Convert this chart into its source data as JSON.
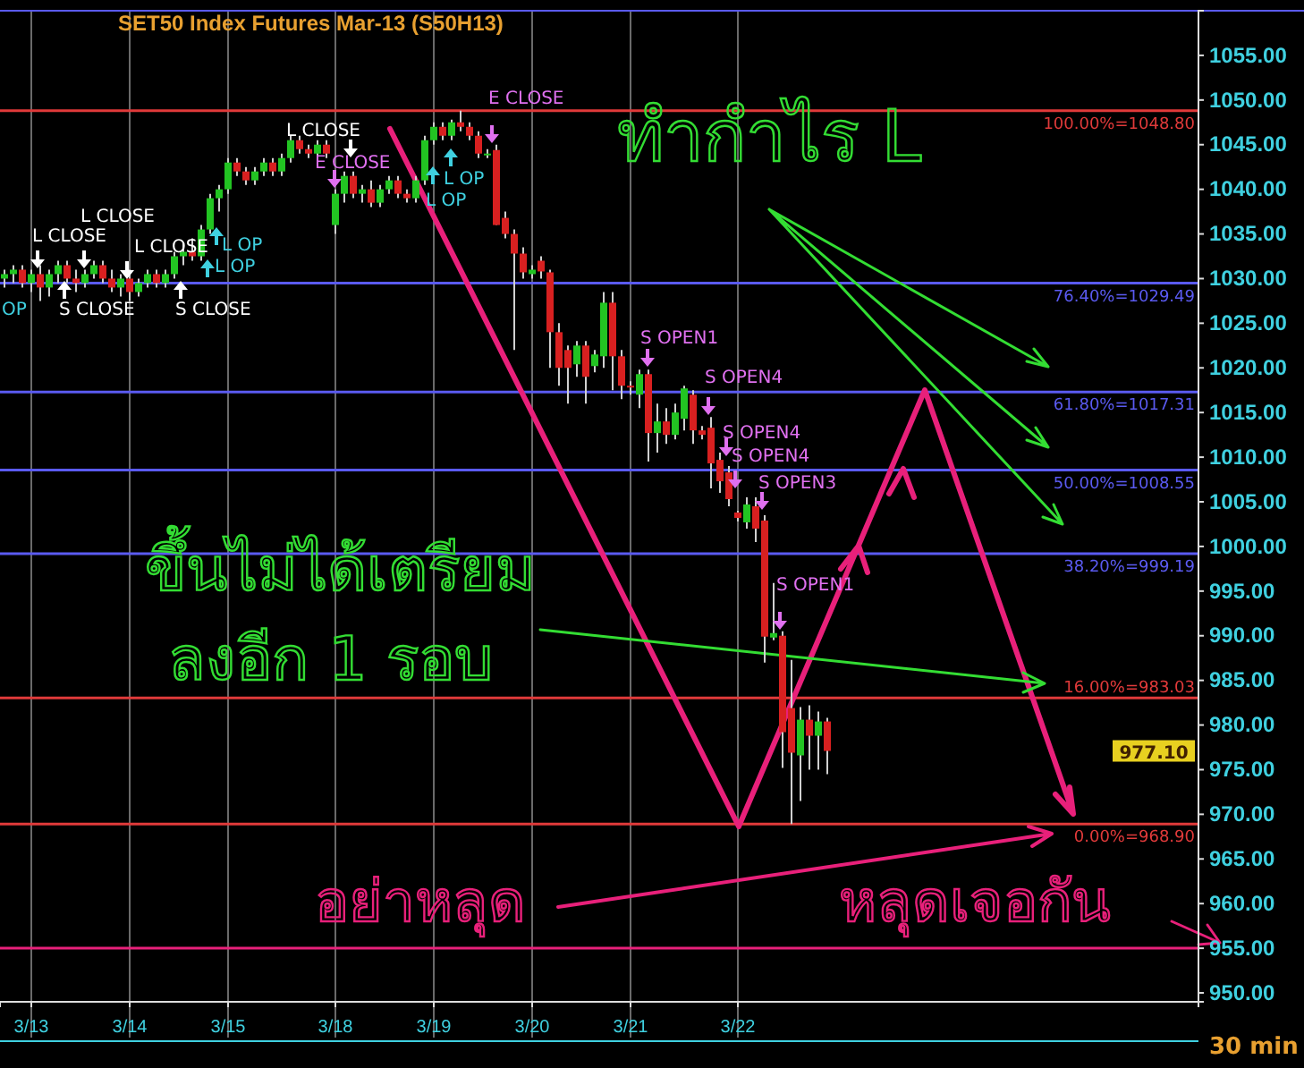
{
  "chart_data": {
    "type": "candlestick",
    "title": "SET50  Index  Futures  Mar-13  (S50H13)",
    "xlabel": "30  min",
    "categories": [
      null,
      null,
      null,
      "3/13",
      null,
      null,
      null,
      null,
      null,
      null,
      null,
      null,
      null,
      null,
      "3/14",
      null,
      null,
      null,
      null,
      null,
      null,
      null,
      null,
      null,
      null,
      "3/15",
      null,
      null,
      null,
      null,
      null,
      null,
      null,
      null,
      null,
      null,
      null,
      "3/18",
      null,
      null,
      null,
      null,
      null,
      null,
      null,
      null,
      null,
      null,
      "3/19",
      null,
      null,
      null,
      null,
      null,
      null,
      null,
      null,
      null,
      null,
      "3/20",
      null,
      null,
      null,
      null,
      null,
      null,
      null,
      null,
      null,
      null,
      "3/21",
      null,
      null,
      null,
      null,
      null,
      null,
      null,
      null,
      null,
      null,
      null,
      "3/22",
      null,
      null,
      null,
      null,
      null,
      null,
      null,
      null,
      null,
      null,
      null,
      null,
      null,
      null,
      null,
      null,
      null,
      null,
      null,
      null,
      null,
      null,
      null,
      null,
      null,
      null,
      null,
      null,
      null,
      null,
      null,
      null,
      null,
      null,
      null,
      null,
      null,
      null,
      null,
      null,
      null,
      null,
      null,
      null,
      null,
      null,
      null,
      null,
      null,
      null,
      null
    ],
    "ohlc": [
      [
        1030,
        1031,
        1029,
        1030.5
      ],
      [
        1030.5,
        1031.5,
        1029.5,
        1031
      ],
      [
        1031,
        1031.5,
        1029,
        1029.5
      ],
      [
        1029.5,
        1031,
        1028.5,
        1030.5
      ],
      [
        1030.5,
        1031.5,
        1027.5,
        1029
      ],
      [
        1029,
        1031,
        1028,
        1030.5
      ],
      [
        1030.5,
        1032,
        1029.5,
        1031.5
      ],
      [
        1031.5,
        1032,
        1029.5,
        1030
      ],
      [
        1030,
        1031,
        1028.5,
        1029.5
      ],
      [
        1029.5,
        1031,
        1029,
        1030.5
      ],
      [
        1030.5,
        1032,
        1030,
        1031.5
      ],
      [
        1031.5,
        1032,
        1029.5,
        1030
      ],
      [
        1030,
        1031,
        1028.5,
        1029
      ],
      [
        1029,
        1030.5,
        1028,
        1030
      ],
      [
        1030,
        1031,
        1027.5,
        1028.5
      ],
      [
        1028.5,
        1030,
        1028,
        1029.5
      ],
      [
        1029.5,
        1031,
        1029,
        1030.5
      ],
      [
        1030.5,
        1031,
        1029,
        1029.5
      ],
      [
        1029.5,
        1031,
        1029,
        1030.5
      ],
      [
        1030.5,
        1033,
        1030,
        1032.5
      ],
      [
        1032.5,
        1034,
        1031.5,
        1033
      ],
      [
        1033,
        1034.5,
        1032,
        1032.5
      ],
      [
        1032.5,
        1036,
        1032,
        1035.5
      ],
      [
        1035.5,
        1039.5,
        1035,
        1039
      ],
      [
        1039,
        1040.5,
        1037.5,
        1040
      ],
      [
        1040,
        1043.5,
        1039.5,
        1043
      ],
      [
        1043,
        1043.5,
        1041.5,
        1042
      ],
      [
        1042,
        1042.5,
        1040.5,
        1041
      ],
      [
        1041,
        1042.5,
        1040.5,
        1042
      ],
      [
        1042,
        1043.5,
        1041.5,
        1043
      ],
      [
        1043,
        1043.5,
        1041.5,
        1042
      ],
      [
        1042,
        1044,
        1041.5,
        1043.5
      ],
      [
        1043.5,
        1046,
        1043,
        1045.5
      ],
      [
        1045.5,
        1046,
        1044,
        1044.5
      ],
      [
        1044.5,
        1045,
        1043.5,
        1044
      ],
      [
        1044,
        1045.5,
        1043.5,
        1045
      ],
      [
        1045,
        1045.5,
        1043.5,
        1044
      ],
      [
        1036,
        1040,
        1035,
        1039.5
      ],
      [
        1039.5,
        1042,
        1038.5,
        1041.5
      ],
      [
        1041.5,
        1042,
        1039,
        1039.5
      ],
      [
        1039.5,
        1040.5,
        1038.5,
        1040
      ],
      [
        1040,
        1041,
        1038,
        1038.5
      ],
      [
        1038.5,
        1040.5,
        1038,
        1040
      ],
      [
        1040,
        1041.5,
        1039.5,
        1041
      ],
      [
        1041,
        1041.5,
        1039,
        1039.5
      ],
      [
        1039.5,
        1040,
        1038.5,
        1039
      ],
      [
        1039,
        1041.5,
        1038.5,
        1041
      ],
      [
        1041,
        1046,
        1040.5,
        1045.5
      ],
      [
        1045.5,
        1047.5,
        1045,
        1047
      ],
      [
        1047,
        1047.5,
        1045.5,
        1046
      ],
      [
        1046,
        1047.8,
        1045.5,
        1047.5
      ],
      [
        1047.5,
        1048.8,
        1046.5,
        1047
      ],
      [
        1047,
        1047.5,
        1045.5,
        1046
      ],
      [
        1046,
        1046.5,
        1043.5,
        1044
      ],
      [
        1044,
        1044.5,
        1043.5,
        1044
      ],
      [
        1044.4,
        1045,
        1036,
        1036
      ],
      [
        1036.8,
        1037.5,
        1034.5,
        1035
      ],
      [
        1035,
        1035.5,
        1022,
        1032.8
      ],
      [
        1032.8,
        1033.5,
        1030,
        1030.7
      ],
      [
        1030.5,
        1031.5,
        1030,
        1031
      ],
      [
        1032,
        1032.5,
        1030,
        1030.8
      ],
      [
        1030.7,
        1031,
        1020,
        1024
      ],
      [
        1024,
        1025,
        1018,
        1020
      ],
      [
        1022,
        1022.5,
        1016,
        1020
      ],
      [
        1020.4,
        1023,
        1019,
        1022.5
      ],
      [
        1022.5,
        1023,
        1016,
        1019
      ],
      [
        1020.2,
        1022,
        1019.5,
        1021.5
      ],
      [
        1021.3,
        1028.5,
        1020,
        1027.3
      ],
      [
        1027.3,
        1028.5,
        1017.5,
        1021.3
      ],
      [
        1021.3,
        1022,
        1016.5,
        1018
      ],
      [
        1018,
        1018.5,
        1017,
        1017.9
      ],
      [
        1017,
        1019.8,
        1015.5,
        1019.3
      ],
      [
        1019.3,
        1019.8,
        1009.5,
        1012.7
      ],
      [
        1012.7,
        1016,
        1010.5,
        1014
      ],
      [
        1014,
        1015.5,
        1011.5,
        1012.5
      ],
      [
        1012.5,
        1016,
        1012,
        1015
      ],
      [
        1014.3,
        1018,
        1013,
        1017.7
      ],
      [
        1017,
        1017.5,
        1011.5,
        1013
      ],
      [
        1013,
        1013.5,
        1012,
        1012.5
      ],
      [
        1013.3,
        1014.5,
        1006.5,
        1009.3
      ],
      [
        1009.7,
        1010.5,
        1006,
        1007.3
      ],
      [
        1008.3,
        1009,
        1004.5,
        1005.3
      ],
      [
        1003.8,
        1004,
        1002.8,
        1003.2
      ],
      [
        1002.7,
        1005.5,
        1002,
        1004.7
      ],
      [
        1004.5,
        1005.5,
        1000.5,
        1002
      ],
      [
        1002.9,
        1003.5,
        987,
        989.9
      ],
      [
        989.8,
        995.9,
        989.5,
        990.3
      ],
      [
        990,
        990.5,
        975.2,
        979.2
      ],
      [
        981.9,
        987.3,
        968.9,
        976.9
      ],
      [
        976.6,
        982,
        971.5,
        980.6
      ],
      [
        980.6,
        982.2,
        975,
        978.8
      ],
      [
        978.8,
        981.5,
        975,
        980.4
      ],
      [
        980.4,
        980.8,
        974.5,
        977.1
      ],
      null,
      null,
      null,
      null,
      null,
      null,
      null,
      null,
      null,
      null,
      null,
      null,
      null,
      null,
      null,
      null,
      null,
      null,
      null,
      null,
      null,
      null,
      null,
      null,
      null,
      null,
      null,
      null,
      null,
      null,
      null,
      null,
      null,
      null,
      null,
      null,
      null,
      null,
      null,
      null,
      null
    ],
    "ylim": [
      949,
      1060
    ],
    "yticks": [
      {
        "value": 950,
        "label": "950.00"
      },
      {
        "value": 955,
        "label": "955.00"
      },
      {
        "value": 960,
        "label": "960.00"
      },
      {
        "value": 965,
        "label": "965.00"
      },
      {
        "value": 970,
        "label": "970.00"
      },
      {
        "value": 975,
        "label": "975.00"
      },
      {
        "value": 980,
        "label": "980.00"
      },
      {
        "value": 985,
        "label": "985.00"
      },
      {
        "value": 990,
        "label": "990.00"
      },
      {
        "value": 995,
        "label": "995.00"
      },
      {
        "value": 1000,
        "label": "1000.00"
      },
      {
        "value": 1005,
        "label": "1005.00"
      },
      {
        "value": 1010,
        "label": "1010.00"
      },
      {
        "value": 1015,
        "label": "1015.00"
      },
      {
        "value": 1020,
        "label": "1020.00"
      },
      {
        "value": 1025,
        "label": "1025.00"
      },
      {
        "value": 1030,
        "label": "1030.00"
      },
      {
        "value": 1035,
        "label": "1035.00"
      },
      {
        "value": 1040,
        "label": "1040.00"
      },
      {
        "value": 1045,
        "label": "1045.00"
      },
      {
        "value": 1050,
        "label": "1050.00"
      },
      {
        "value": 1055,
        "label": "1055.00"
      }
    ],
    "grid": "x",
    "ref_lines": [
      {
        "axis": "y",
        "value": 1048.8,
        "label": "100.00%=1048.80",
        "color": "#e03a3a"
      },
      {
        "axis": "y",
        "value": 1029.49,
        "label": "76.40%=1029.49",
        "color": "#5a5af0"
      },
      {
        "axis": "y",
        "value": 1017.31,
        "label": "61.80%=1017.31",
        "color": "#5a5af0"
      },
      {
        "axis": "y",
        "value": 1008.55,
        "label": "50.00%=1008.55",
        "color": "#5a5af0"
      },
      {
        "axis": "y",
        "value": 999.19,
        "label": "38.20%=999.19",
        "color": "#5a5af0"
      },
      {
        "axis": "y",
        "value": 983.03,
        "label": "16.00%=983.03",
        "color": "#e03a3a"
      },
      {
        "axis": "y",
        "value": 968.9,
        "label": "0.00%=968.90",
        "color": "#e03a3a"
      },
      {
        "axis": "y",
        "value": 955,
        "label": null,
        "color": "#e8207a"
      }
    ],
    "annotations": [
      "L CLOSE",
      "L CLOSE",
      "L CLOSE",
      "S CLOSE",
      "S CLOSE",
      "L OP",
      "L OP",
      "OP",
      "E CLOSE",
      "L CLOSE",
      "L OP",
      "L OP",
      "E CLOSE",
      "S OPEN1",
      "S OPEN4",
      "S OPEN4",
      "S OPEN4",
      "S OPEN3",
      "S OPEN1",
      "977.10",
      "ทำกำไร L",
      "ขึ้นไม่ได้เตรียม",
      "ลงอีก 1 รอบ",
      "อย่าหลุด",
      "หลุดเจอกัน"
    ]
  }
}
